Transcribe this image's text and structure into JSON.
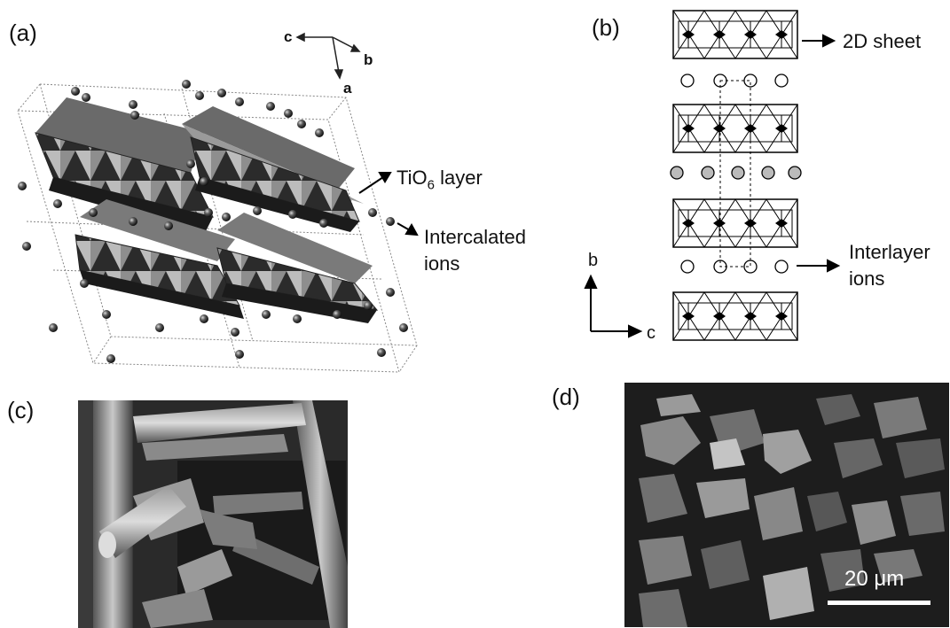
{
  "panels": {
    "a": {
      "label": "(a)",
      "axis_c": "c",
      "axis_b": "b",
      "axis_a": "a",
      "layer_label_main": "TiO",
      "layer_label_sub": "6",
      "layer_label_tail": " layer",
      "ions_label_line1": "Intercalated",
      "ions_label_line2": "ions"
    },
    "b": {
      "label": "(b)",
      "sheet_label": "2D sheet",
      "interlayer_line1": "Interlayer",
      "interlayer_line2": "ions",
      "axis_b": "b",
      "axis_c": "c"
    },
    "c": {
      "label": "(c)"
    },
    "d": {
      "label": "(d)",
      "scale_bar": "20 μm"
    }
  }
}
